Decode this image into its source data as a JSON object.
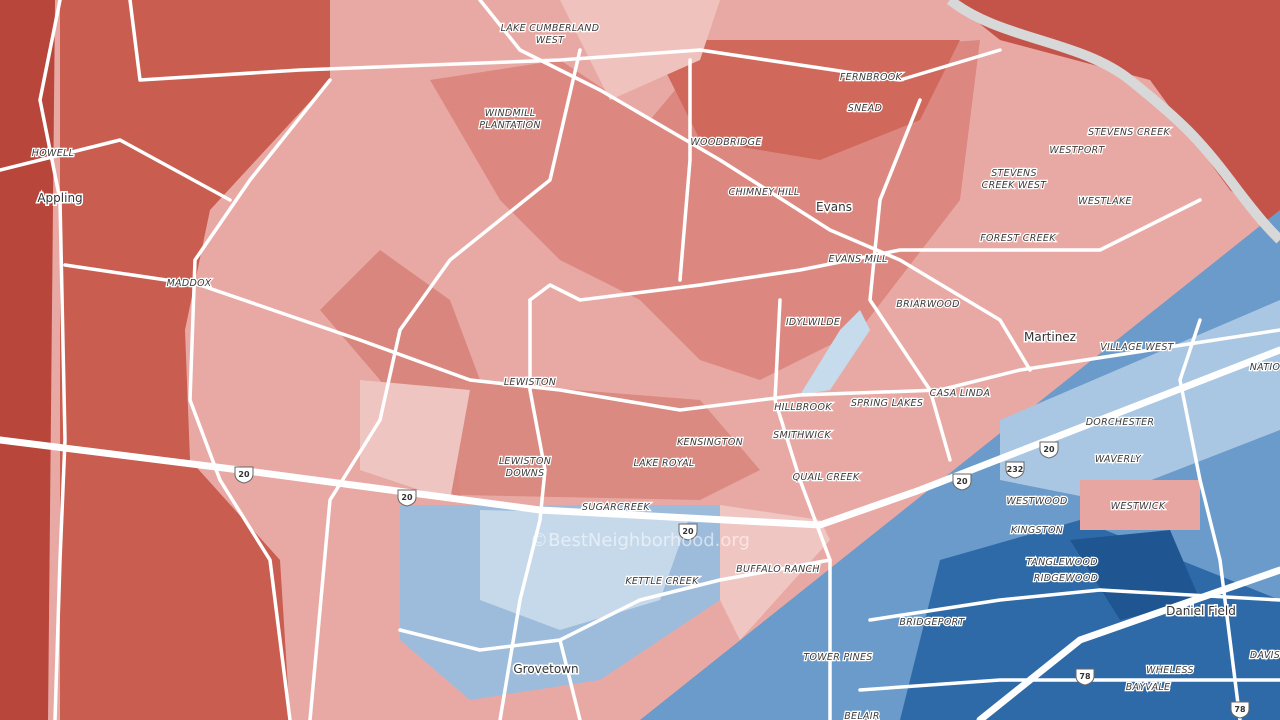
{
  "cities": [
    {
      "lines": [
        "Appling"
      ]
    },
    {
      "lines": [
        "Evans"
      ]
    },
    {
      "lines": [
        "Martinez"
      ]
    },
    {
      "lines": [
        "Grovetown"
      ]
    },
    {
      "lines": [
        "Daniel Field"
      ]
    }
  ],
  "neighborhoods": [
    {
      "lines": [
        "LAKE CUMBERLAND",
        "WEST"
      ]
    },
    {
      "lines": [
        "HOWELL"
      ]
    },
    {
      "lines": [
        "WINDMILL",
        "PLANTATION"
      ]
    },
    {
      "lines": [
        "WOODBRIDGE"
      ]
    },
    {
      "lines": [
        "FERNBROOK"
      ]
    },
    {
      "lines": [
        "SNEAD"
      ]
    },
    {
      "lines": [
        "CHIMNEY HILL"
      ]
    },
    {
      "lines": [
        "EVANS MILL"
      ]
    },
    {
      "lines": [
        "STEVENS CREEK"
      ]
    },
    {
      "lines": [
        "WESTPORT"
      ]
    },
    {
      "lines": [
        "STEVENS",
        "CREEK WEST"
      ]
    },
    {
      "lines": [
        "WESTLAKE"
      ]
    },
    {
      "lines": [
        "FOREST CREEK"
      ]
    },
    {
      "lines": [
        "MADDOX"
      ]
    },
    {
      "lines": [
        "BRIARWOOD"
      ]
    },
    {
      "lines": [
        "IDYLWILDE"
      ]
    },
    {
      "lines": [
        "VILLAGE WEST"
      ]
    },
    {
      "lines": [
        "NATIO"
      ]
    },
    {
      "lines": [
        "LEWISTON"
      ]
    },
    {
      "lines": [
        "CASA LINDA"
      ]
    },
    {
      "lines": [
        "HILLBROOK"
      ]
    },
    {
      "lines": [
        "SPRING LAKES"
      ]
    },
    {
      "lines": [
        "DORCHESTER"
      ]
    },
    {
      "lines": [
        "KENSINGTON"
      ]
    },
    {
      "lines": [
        "SMITHWICK"
      ]
    },
    {
      "lines": [
        "WAVERLY"
      ]
    },
    {
      "lines": [
        "LEWISTON",
        "DOWNS"
      ]
    },
    {
      "lines": [
        "LAKE ROYAL"
      ]
    },
    {
      "lines": [
        "QUAIL CREEK"
      ]
    },
    {
      "lines": [
        "WESTWOOD"
      ]
    },
    {
      "lines": [
        "WESTWICK"
      ]
    },
    {
      "lines": [
        "SUGARCREEK"
      ]
    },
    {
      "lines": [
        "KINGSTON"
      ]
    },
    {
      "lines": [
        "TANGLEWOOD"
      ]
    },
    {
      "lines": [
        "RIDGEWOOD"
      ]
    },
    {
      "lines": [
        "KETTLE CREEK"
      ]
    },
    {
      "lines": [
        "BUFFALO RANCH"
      ]
    },
    {
      "lines": [
        "BRIDGEPORT"
      ]
    },
    {
      "lines": [
        "DAVIS"
      ]
    },
    {
      "lines": [
        "TOWER PINES"
      ]
    },
    {
      "lines": [
        "WHELESS"
      ]
    },
    {
      "lines": [
        "BAYVALE"
      ]
    },
    {
      "lines": [
        "BELAIR"
      ]
    }
  ],
  "highway_shields": [
    "20",
    "20",
    "20",
    "20",
    "20",
    "232",
    "78",
    "78"
  ],
  "watermark": "©BestNeighborhood.org"
}
